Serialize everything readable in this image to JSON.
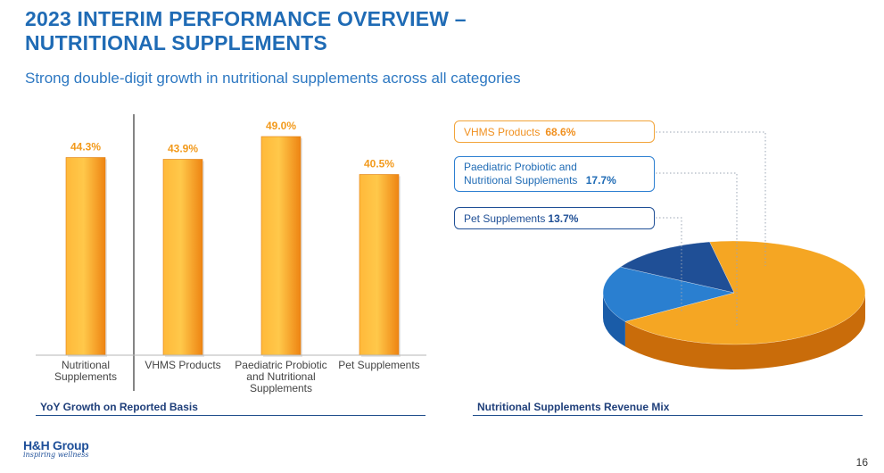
{
  "header": {
    "title_line1": "2023 INTERIM PERFORMANCE OVERVIEW –",
    "title_line2": "NUTRITIONAL SUPPLEMENTS",
    "subtitle": "Strong double-digit growth in nutritional supplements across all categories"
  },
  "chart_data": [
    {
      "type": "bar",
      "categories": [
        "Nutritional Supplements",
        "VHMS Products",
        "Paediatric Probiotic and Nutritional Supplements",
        "Pet Supplements"
      ],
      "values": [
        44.3,
        43.9,
        49.0,
        40.5
      ],
      "value_labels": [
        "44.3%",
        "43.9%",
        "49.0%",
        "40.5%"
      ],
      "title": "YoY Growth on Reported Basis",
      "ylim": [
        0,
        60
      ],
      "grid": false,
      "bar_color": "#f7a21b",
      "label_color": "#f29a1c"
    },
    {
      "type": "pie",
      "title": "Nutritional Supplements Revenue Mix",
      "labels": [
        "VHMS Products",
        "Paediatric Probiotic and Nutritional Supplements",
        "Pet Supplements"
      ],
      "values": [
        68.6,
        17.7,
        13.7
      ],
      "value_labels": [
        "68.6%",
        "17.7%",
        "13.7%"
      ],
      "colors": [
        "#f5a623",
        "#2a7fd0",
        "#1f4f96"
      ]
    }
  ],
  "callouts": {
    "vhms_label": "VHMS Products",
    "vhms_value": "68.6%",
    "paed_label_line1": "Paediatric Probiotic and",
    "paed_label_line2": "Nutritional Supplements",
    "paed_value": "17.7%",
    "pet_label": "Pet Supplements",
    "pet_value": "13.7%"
  },
  "footer": {
    "logo_text": "H&H Group",
    "tagline": "inspiring wellness",
    "page_number": "16"
  }
}
